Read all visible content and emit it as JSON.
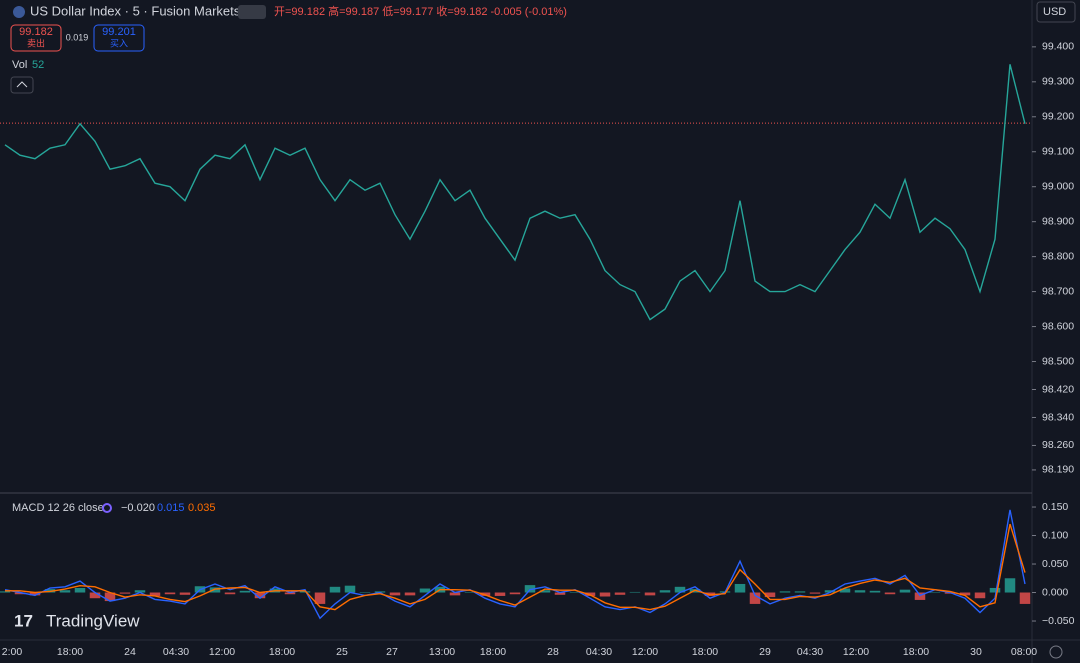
{
  "header": {
    "title": "US Dollar Index · 5 · Fusion Markets",
    "ohlc": "开=99.182 高=99.187 低=99.177 收=99.182 -0.005 (-0.01%)",
    "sell_price": "99.182",
    "sell_label": "卖出",
    "spread": "0.019",
    "buy_price": "99.201",
    "buy_label": "买入",
    "vol_label": "Vol",
    "vol_value": "52",
    "currency": "USD",
    "brand": "TradingView"
  },
  "x_axis_labels": [
    "2:00",
    "18:00",
    "24",
    "04:30",
    "12:00",
    "18:00",
    "25",
    "27",
    "13:00",
    "18:00",
    "28",
    "04:30",
    "12:00",
    "18:00",
    "29",
    "04:30",
    "12:00",
    "18:00",
    "30",
    "08:00"
  ],
  "chart_data": [
    {
      "type": "line",
      "series": [
        {
          "name": "US Dollar Index",
          "color": "#26a69a",
          "values": [
            99.12,
            99.09,
            99.08,
            99.11,
            99.12,
            99.18,
            99.13,
            99.05,
            99.06,
            99.08,
            99.01,
            99.0,
            98.96,
            99.05,
            99.09,
            99.08,
            99.12,
            99.02,
            99.11,
            99.09,
            99.11,
            99.02,
            98.96,
            99.02,
            98.99,
            99.01,
            98.92,
            98.85,
            98.93,
            99.02,
            98.96,
            98.99,
            98.91,
            98.85,
            98.79,
            98.91,
            98.93,
            98.91,
            98.92,
            98.85,
            98.76,
            98.72,
            98.7,
            98.62,
            98.65,
            98.73,
            98.76,
            98.7,
            98.76,
            98.96,
            98.73,
            98.7,
            98.7,
            98.72,
            98.7,
            98.76,
            98.82,
            98.87,
            98.95,
            98.91,
            99.02,
            98.87,
            98.91,
            98.88,
            98.82,
            98.7,
            98.85,
            99.35,
            99.18
          ]
        }
      ],
      "last_price": 99.182,
      "last_price_color": "#ef5350",
      "ylim": [
        98.124,
        99.534
      ],
      "yticks": [
        {
          "value": 99.4,
          "label": "99.400"
        },
        {
          "value": 99.3,
          "label": "99.300"
        },
        {
          "value": 99.2,
          "label": "99.200"
        },
        {
          "value": 99.1,
          "label": "99.100"
        },
        {
          "value": 99.0,
          "label": "99.000"
        },
        {
          "value": 98.9,
          "label": "98.900"
        },
        {
          "value": 98.8,
          "label": "98.800"
        },
        {
          "value": 98.7,
          "label": "98.700"
        },
        {
          "value": 98.6,
          "label": "98.600"
        },
        {
          "value": 98.5,
          "label": "98.500"
        },
        {
          "value": 98.42,
          "label": "98.420"
        },
        {
          "value": 98.34,
          "label": "98.340"
        },
        {
          "value": 98.26,
          "label": "98.260"
        },
        {
          "value": 98.19,
          "label": "98.190"
        }
      ]
    },
    {
      "type": "macd",
      "title": "MACD 12 26 close",
      "legend_values": [
        "−0.020",
        "0.015",
        "0.035"
      ],
      "series": [
        {
          "name": "MACD",
          "color": "#2962ff",
          "values": [
            0.005,
            0.0,
            -0.005,
            0.008,
            0.01,
            0.02,
            0.0,
            -0.015,
            -0.01,
            0.0,
            -0.012,
            -0.015,
            -0.02,
            0.005,
            0.015,
            0.005,
            0.012,
            -0.01,
            0.01,
            0.0,
            0.005,
            -0.045,
            -0.02,
            0.0,
            -0.005,
            0.0,
            -0.015,
            -0.025,
            -0.005,
            0.015,
            0.0,
            0.005,
            -0.01,
            -0.02,
            -0.025,
            0.005,
            0.01,
            0.0,
            0.005,
            -0.01,
            -0.025,
            -0.03,
            -0.025,
            -0.035,
            -0.02,
            0.0,
            0.01,
            -0.01,
            0.0,
            0.055,
            -0.005,
            -0.02,
            -0.01,
            -0.005,
            -0.01,
            0.0,
            0.015,
            0.02,
            0.025,
            0.015,
            0.03,
            -0.005,
            0.005,
            0.0,
            -0.01,
            -0.035,
            -0.01,
            0.145,
            0.015
          ]
        },
        {
          "name": "Signal",
          "color": "#ff6d00",
          "values": [
            0.003,
            0.003,
            0.0,
            0.002,
            0.006,
            0.012,
            0.01,
            0.0,
            -0.008,
            -0.004,
            -0.006,
            -0.012,
            -0.016,
            -0.006,
            0.006,
            0.008,
            0.009,
            0.0,
            0.003,
            0.003,
            0.003,
            -0.025,
            -0.03,
            -0.012,
            -0.005,
            -0.002,
            -0.01,
            -0.02,
            -0.012,
            0.005,
            0.005,
            0.004,
            -0.004,
            -0.014,
            -0.022,
            -0.008,
            0.006,
            0.004,
            0.004,
            -0.004,
            -0.018,
            -0.026,
            -0.026,
            -0.03,
            -0.024,
            -0.01,
            0.004,
            -0.004,
            -0.002,
            0.04,
            0.015,
            -0.012,
            -0.012,
            -0.007,
            -0.008,
            -0.004,
            0.008,
            0.016,
            0.022,
            0.018,
            0.025,
            0.008,
            0.005,
            0.002,
            -0.005,
            -0.025,
            -0.018,
            0.12,
            0.035
          ]
        }
      ],
      "histogram": {
        "color_up": "#26a69a",
        "color_down": "#ef5350",
        "values": [
          0.002,
          -0.003,
          -0.005,
          0.006,
          0.004,
          0.008,
          -0.01,
          -0.015,
          -0.002,
          0.004,
          -0.006,
          -0.003,
          -0.004,
          0.011,
          0.009,
          -0.003,
          0.003,
          -0.01,
          0.007,
          -0.003,
          0.002,
          -0.02,
          0.01,
          0.012,
          0.0,
          0.002,
          -0.005,
          -0.005,
          0.007,
          0.01,
          -0.005,
          0.001,
          -0.006,
          -0.006,
          -0.003,
          0.013,
          0.004,
          -0.004,
          0.001,
          -0.006,
          -0.007,
          -0.004,
          0.001,
          -0.005,
          0.004,
          0.01,
          0.006,
          -0.006,
          0.002,
          0.015,
          -0.02,
          -0.008,
          0.002,
          0.002,
          -0.002,
          0.004,
          0.007,
          0.004,
          0.003,
          -0.003,
          0.005,
          -0.013,
          0.0,
          -0.002,
          -0.005,
          -0.01,
          0.008,
          0.025,
          -0.02
        ]
      },
      "ylim": [
        -0.0833,
        0.1746
      ],
      "yticks": [
        {
          "value": 0.15,
          "label": "0.150"
        },
        {
          "value": 0.1,
          "label": "0.100"
        },
        {
          "value": 0.05,
          "label": "0.050"
        },
        {
          "value": 0,
          "label": "0.000"
        },
        {
          "value": -0.05,
          "label": "−0.050"
        }
      ]
    }
  ]
}
